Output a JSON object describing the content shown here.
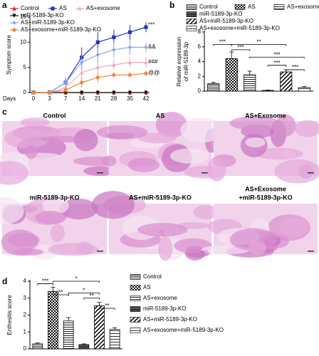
{
  "figure": {
    "panel_labels": [
      "a",
      "b",
      "c",
      "d"
    ],
    "histology": {
      "labels": [
        [
          "Control"
        ],
        [
          "AS"
        ],
        [
          "AS+Exosome"
        ],
        [
          "miR-5189-3p-KO"
        ],
        [
          "AS+miR-5189-3p-KO"
        ],
        [
          "AS+Exosome",
          "+miR-5189-3p-KO"
        ]
      ]
    }
  },
  "chart_data": [
    {
      "type": "line",
      "ylabel": "Symptom score",
      "xlabel": "Days",
      "categories": [
        "0",
        "3",
        "7",
        "14",
        "21",
        "28",
        "35",
        "42"
      ],
      "ylim": [
        0,
        15
      ],
      "yticks": [
        0,
        5,
        10,
        15
      ],
      "series": [
        {
          "name": "Control",
          "color": "#e0201c",
          "values": [
            0,
            0,
            0,
            0,
            0,
            0,
            0,
            0
          ]
        },
        {
          "name": "AS",
          "color": "#1f35c4",
          "values": [
            0,
            0,
            2,
            7,
            10,
            11,
            12,
            13
          ],
          "errors": [
            0,
            0,
            1,
            2,
            2,
            1.5,
            1.5,
            1
          ]
        },
        {
          "name": "AS+exosome",
          "color": "#f2a7c0",
          "values": [
            0,
            0,
            1,
            4,
            5,
            5.5,
            6,
            6
          ],
          "errors": [
            0,
            0,
            0.5,
            1,
            1,
            1,
            1,
            1
          ]
        },
        {
          "name": "miR-5189-3p-KO",
          "color": "#111111",
          "values": [
            0,
            0,
            0,
            0,
            0,
            0,
            0,
            0
          ]
        },
        {
          "name": "AS+miR-5189-3p-KO",
          "color": "#86a8e6",
          "values": [
            0,
            0,
            2,
            6,
            7.5,
            8.5,
            9,
            9
          ],
          "errors": [
            0,
            0,
            1,
            1.5,
            1.5,
            1.5,
            1.5,
            1
          ]
        },
        {
          "name": "AS+exosome+miR-5189-3p-KO",
          "color": "#f0883a",
          "values": [
            0,
            0,
            0.5,
            2,
            3,
            3.5,
            3.5,
            3.8
          ],
          "errors": [
            0,
            0,
            0.5,
            1,
            1,
            0.5,
            0.5,
            0.5
          ]
        }
      ],
      "annotations": [
        "***",
        "&&",
        "###",
        "@@"
      ]
    },
    {
      "type": "bar",
      "ylabel": [
        "Relative expression",
        "of miR-5189-3p"
      ],
      "categories": [
        "Control",
        "AS",
        "AS+exosome",
        "miR-5189-3p-KO",
        "AS+miR-5189-3p-KO",
        "AS+exosome+miR-5189-3p-KO"
      ],
      "values": [
        1,
        4.4,
        2.2,
        0.1,
        2.6,
        0.5
      ],
      "errors": [
        0.2,
        0.9,
        0.5,
        0.05,
        0.3,
        0.1
      ],
      "ylim": [
        0,
        8
      ],
      "yticks": [
        0,
        2,
        4,
        6,
        8
      ],
      "annotations": [
        "***",
        "***",
        "**",
        "***",
        "***",
        "***"
      ]
    },
    {
      "type": "bar",
      "ylabel": "Enthesitis score",
      "categories": [
        "Control",
        "AS",
        "AS+exosome",
        "miR-5189-3p-KO",
        "AS+miR-5189-3p-KO",
        "AS+exosome+miR-5189-3p-KO"
      ],
      "values": [
        0.3,
        3.4,
        1.65,
        0.25,
        2.55,
        1.15
      ],
      "errors": [
        0.05,
        0.25,
        0.2,
        0.05,
        0.2,
        0.1
      ],
      "ylim": [
        0,
        4
      ],
      "yticks": [
        0,
        1,
        2,
        3,
        4
      ],
      "annotations": [
        "***",
        "**",
        "*",
        "*",
        "**",
        "**"
      ]
    }
  ]
}
